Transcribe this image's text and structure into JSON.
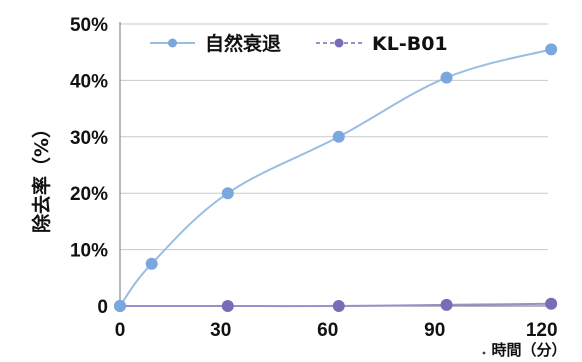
{
  "chart_data": {
    "type": "line",
    "xlabel": "時間（分）",
    "ylabel": "除去率（%）",
    "xlim": [
      0,
      135
    ],
    "ylim": [
      0,
      50
    ],
    "x_ticks": [
      "0",
      "30",
      "60",
      "90",
      "120"
    ],
    "y_ticks": [
      "0",
      "10%",
      "20%",
      "30%",
      "40%",
      "50%"
    ],
    "grid": true,
    "legend_position": "top",
    "series": [
      {
        "name": "自然衰退",
        "color": "#9bbde3",
        "marker_color": "#7aa7dd",
        "x": [
          0,
          10,
          34,
          69,
          103,
          136
        ],
        "y": [
          0,
          7.5,
          20,
          30,
          40.5,
          45.5
        ]
      },
      {
        "name": "KL-B01",
        "color": "#9c8fc9",
        "marker_color": "#7a6ab8",
        "x": [
          0,
          34,
          69,
          103,
          136
        ],
        "y": [
          0,
          0,
          0,
          0.2,
          0.4
        ]
      }
    ]
  }
}
